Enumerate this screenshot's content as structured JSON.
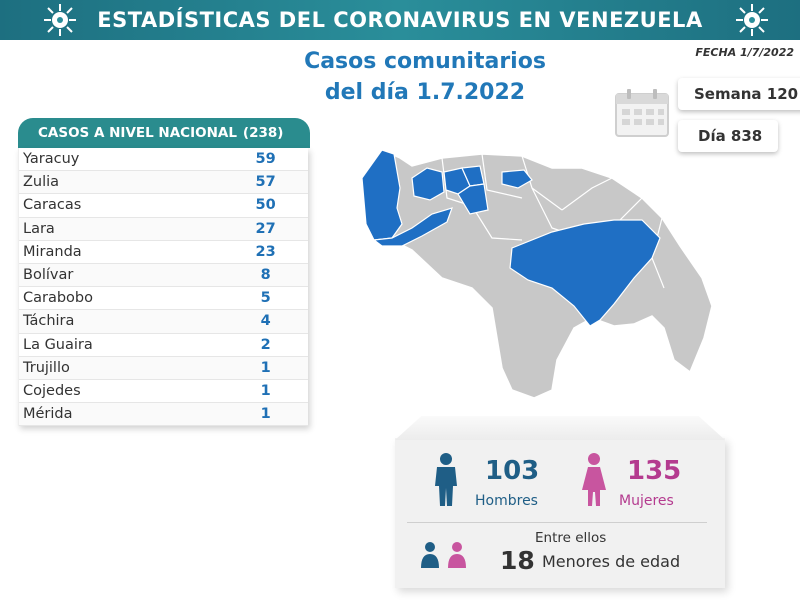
{
  "header": {
    "title": "ESTADÍSTICAS DEL CORONAVIRUS EN VENEZUELA",
    "fecha": "FECHA 1/7/2022"
  },
  "subtitle": {
    "line1": "Casos comunitarios",
    "line2": "del día 1.7.2022"
  },
  "counters": {
    "semana": "Semana 120",
    "dia": "Día 838"
  },
  "table": {
    "heading": "CASOS A NIVEL NACIONAL",
    "total": "(238)",
    "rows": [
      {
        "state": "Yaracuy",
        "count": "59"
      },
      {
        "state": "Zulia",
        "count": "57"
      },
      {
        "state": "Caracas",
        "count": "50"
      },
      {
        "state": "Lara",
        "count": "27"
      },
      {
        "state": "Miranda",
        "count": "23"
      },
      {
        "state": "Bolívar",
        "count": "8"
      },
      {
        "state": "Carabobo",
        "count": "5"
      },
      {
        "state": "Táchira",
        "count": "4"
      },
      {
        "state": "La Guaira",
        "count": "2"
      },
      {
        "state": "Trujillo",
        "count": "1"
      },
      {
        "state": "Cojedes",
        "count": "1"
      },
      {
        "state": "Mérida",
        "count": "1"
      }
    ]
  },
  "stats": {
    "men_count": "103",
    "men_label": "Hombres",
    "women_count": "135",
    "women_label": "Mujeres",
    "entre": "Entre ellos",
    "minors_count": "18",
    "minors_label": "Menores de edad"
  },
  "colors": {
    "banner": "#1d6f80",
    "accent_blue": "#2178b8",
    "table_header": "#2a8c8e",
    "men": "#1f5e86",
    "women": "#b43b8f",
    "map_highlight": "#1f6fc4",
    "map_gray": "#c8c8c8"
  },
  "icons": {
    "banner": "virus-icon",
    "calendar": "calendar-icon",
    "men": "man-icon",
    "women": "woman-icon",
    "minors": "children-icon"
  }
}
